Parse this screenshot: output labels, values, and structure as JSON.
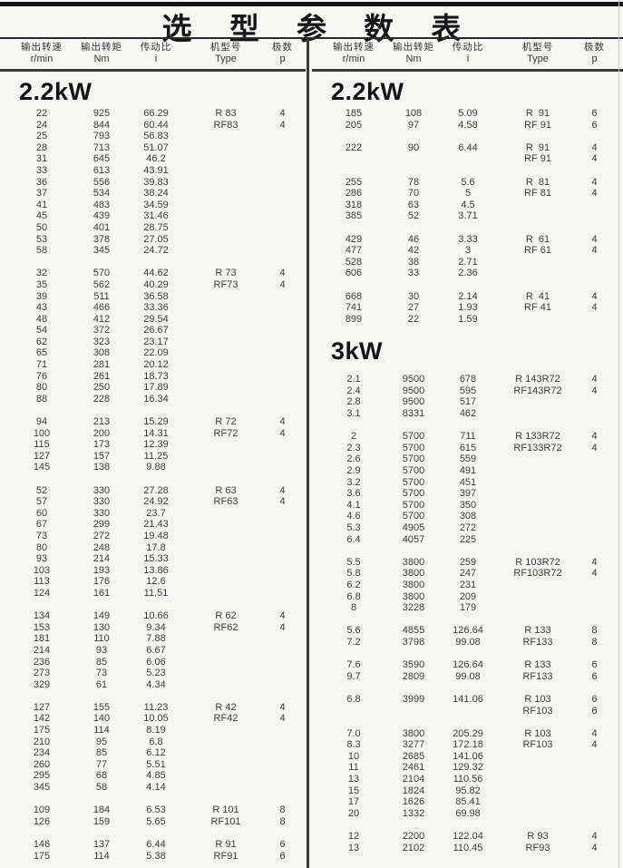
{
  "title": "选 型 参 数 表",
  "header": {
    "columns": [
      {
        "cn": "输出转速",
        "unit": "r/min"
      },
      {
        "cn": "输出转矩",
        "unit": "Nm"
      },
      {
        "cn": "传动比",
        "unit": "i"
      },
      {
        "cn": "机型号",
        "unit": "Type"
      },
      {
        "cn": "极数",
        "unit": "p"
      }
    ]
  },
  "colors": {
    "rule": "#3a3a3a",
    "text": "#3b3b3b",
    "background": "#f6f6f4"
  },
  "table": {
    "left_column": {
      "sections": [
        {
          "label": "2.2kW",
          "blocks": [
            [
              [
                "22",
                "925",
                "66.29",
                "R 83",
                "4"
              ],
              [
                "24",
                "844",
                "60.44",
                "RF83",
                "4"
              ],
              [
                "25",
                "793",
                "56.83",
                "",
                ""
              ],
              [
                "28",
                "713",
                "51.07",
                "",
                ""
              ],
              [
                "31",
                "645",
                "46.2",
                "",
                ""
              ],
              [
                "33",
                "613",
                "43.91",
                "",
                ""
              ],
              [
                "36",
                "556",
                "39.83",
                "",
                ""
              ],
              [
                "37",
                "534",
                "38.24",
                "",
                ""
              ],
              [
                "41",
                "483",
                "34.59",
                "",
                ""
              ],
              [
                "45",
                "439",
                "31.46",
                "",
                ""
              ],
              [
                "50",
                "401",
                "28.75",
                "",
                ""
              ],
              [
                "53",
                "378",
                "27.05",
                "",
                ""
              ],
              [
                "58",
                "345",
                "24.72",
                "",
                ""
              ]
            ],
            [
              [
                "32",
                "570",
                "44.62",
                "R 73",
                "4"
              ],
              [
                "35",
                "562",
                "40.29",
                "RF73",
                "4"
              ],
              [
                "39",
                "511",
                "36.58",
                "",
                ""
              ],
              [
                "43",
                "466",
                "33.36",
                "",
                ""
              ],
              [
                "48",
                "412",
                "29.54",
                "",
                ""
              ],
              [
                "54",
                "372",
                "26.67",
                "",
                ""
              ],
              [
                "62",
                "323",
                "23.17",
                "",
                ""
              ],
              [
                "65",
                "308",
                "22.09",
                "",
                ""
              ],
              [
                "71",
                "281",
                "20.12",
                "",
                ""
              ],
              [
                "76",
                "261",
                "18.73",
                "",
                ""
              ],
              [
                "80",
                "250",
                "17.89",
                "",
                ""
              ],
              [
                "88",
                "228",
                "16.34",
                "",
                ""
              ]
            ],
            [
              [
                "94",
                "213",
                "15.29",
                "R 72",
                "4"
              ],
              [
                "100",
                "200",
                "14.31",
                "RF72",
                "4"
              ],
              [
                "115",
                "173",
                "12.39",
                "",
                ""
              ],
              [
                "127",
                "157",
                "11.25",
                "",
                ""
              ],
              [
                "145",
                "138",
                "9.88",
                "",
                ""
              ]
            ],
            [
              [
                "52",
                "330",
                "27.28",
                "R 63",
                "4"
              ],
              [
                "57",
                "330",
                "24.92",
                "RF63",
                "4"
              ],
              [
                "60",
                "330",
                "23.7",
                "",
                ""
              ],
              [
                "67",
                "299",
                "21.43",
                "",
                ""
              ],
              [
                "73",
                "272",
                "19.48",
                "",
                ""
              ],
              [
                "80",
                "248",
                "17.8",
                "",
                ""
              ],
              [
                "93",
                "214",
                "15.33",
                "",
                ""
              ],
              [
                "103",
                "193",
                "13.86",
                "",
                ""
              ],
              [
                "113",
                "176",
                "12.6",
                "",
                ""
              ],
              [
                "124",
                "161",
                "11.51",
                "",
                ""
              ]
            ],
            [
              [
                "134",
                "149",
                "10.66",
                "R 62",
                "4"
              ],
              [
                "153",
                "130",
                "9.34",
                "RF62",
                "4"
              ],
              [
                "181",
                "110",
                "7.88",
                "",
                ""
              ],
              [
                "214",
                "93",
                "6.67",
                "",
                ""
              ],
              [
                "236",
                "85",
                "6.06",
                "",
                ""
              ],
              [
                "273",
                "73",
                "5.23",
                "",
                ""
              ],
              [
                "329",
                "61",
                "4.34",
                "",
                ""
              ]
            ],
            [
              [
                "127",
                "155",
                "11.23",
                "R 42",
                "4"
              ],
              [
                "142",
                "140",
                "10.05",
                "RF42",
                "4"
              ],
              [
                "175",
                "114",
                "8.19",
                "",
                ""
              ],
              [
                "210",
                "95",
                "6.8",
                "",
                ""
              ],
              [
                "234",
                "85",
                "6.12",
                "",
                ""
              ],
              [
                "260",
                "77",
                "5.51",
                "",
                ""
              ],
              [
                "295",
                "68",
                "4.85",
                "",
                ""
              ],
              [
                "345",
                "58",
                "4.14",
                "",
                ""
              ]
            ],
            [
              [
                "109",
                "184",
                "6.53",
                "R 101",
                "8"
              ],
              [
                "126",
                "159",
                "5.65",
                "RF101",
                "8"
              ]
            ],
            [
              [
                "146",
                "137",
                "6.44",
                "R 91",
                "6"
              ],
              [
                "175",
                "114",
                "5.38",
                "RF91",
                "6"
              ]
            ]
          ]
        }
      ]
    },
    "right_column": {
      "sections": [
        {
          "label": "2.2kW",
          "blocks": [
            [
              [
                "185",
                "108",
                "5.09",
                "R  91",
                "6"
              ],
              [
                "205",
                "97",
                "4.58",
                "RF 91",
                "6"
              ]
            ],
            [
              [
                "222",
                "90",
                "6.44",
                "R  91",
                "4"
              ],
              [
                "",
                "",
                "",
                "RF 91",
                "4"
              ]
            ],
            [
              [
                "255",
                "78",
                "5.6",
                "R  81",
                "4"
              ],
              [
                "286",
                "70",
                "5",
                "RF 81",
                "4"
              ],
              [
                "318",
                "63",
                "4.5",
                "",
                ""
              ],
              [
                "385",
                "52",
                "3.71",
                "",
                ""
              ]
            ],
            [
              [
                "429",
                "46",
                "3.33",
                "R  61",
                "4"
              ],
              [
                "477",
                "42",
                "3",
                "RF 61",
                "4"
              ],
              [
                "528",
                "38",
                "2.71",
                "",
                ""
              ],
              [
                "606",
                "33",
                "2.36",
                "",
                ""
              ]
            ],
            [
              [
                "668",
                "30",
                "2.14",
                "R  41",
                "4"
              ],
              [
                "741",
                "27",
                "1.93",
                "RF 41",
                "4"
              ],
              [
                "899",
                "22",
                "1.59",
                "",
                ""
              ]
            ]
          ]
        },
        {
          "label": "3kW",
          "blocks": [
            [
              [
                "2.1",
                "9500",
                "678",
                "R 143R72",
                "4"
              ],
              [
                "2.4",
                "9500",
                "595",
                "RF143R72",
                "4"
              ],
              [
                "2.8",
                "9500",
                "517",
                "",
                ""
              ],
              [
                "3.1",
                "8331",
                "462",
                "",
                ""
              ]
            ],
            [
              [
                "2",
                "5700",
                "711",
                "R 133R72",
                "4"
              ],
              [
                "2.3",
                "5700",
                "615",
                "RF133R72",
                "4"
              ],
              [
                "2.6",
                "5700",
                "559",
                "",
                ""
              ],
              [
                "2.9",
                "5700",
                "491",
                "",
                ""
              ],
              [
                "3.2",
                "5700",
                "451",
                "",
                ""
              ],
              [
                "3.6",
                "5700",
                "397",
                "",
                ""
              ],
              [
                "4.1",
                "5700",
                "350",
                "",
                ""
              ],
              [
                "4.6",
                "5700",
                "308",
                "",
                ""
              ],
              [
                "5.3",
                "4905",
                "272",
                "",
                ""
              ],
              [
                "6.4",
                "4057",
                "225",
                "",
                ""
              ]
            ],
            [
              [
                "5.5",
                "3800",
                "259",
                "R 103R72",
                "4"
              ],
              [
                "5.8",
                "3800",
                "247",
                "RF103R72",
                "4"
              ],
              [
                "6.2",
                "3800",
                "231",
                "",
                ""
              ],
              [
                "6.8",
                "3800",
                "209",
                "",
                ""
              ],
              [
                "8",
                "3228",
                "179",
                "",
                ""
              ]
            ],
            [
              [
                "5.6",
                "4855",
                "126.64",
                "R 133",
                "8"
              ],
              [
                "7.2",
                "3798",
                "99.08",
                "RF133",
                "8"
              ]
            ],
            [
              [
                "7.6",
                "3590",
                "126.64",
                "R 133",
                "6"
              ],
              [
                "9.7",
                "2809",
                "99.08",
                "RF133",
                "6"
              ]
            ],
            [
              [
                "6.8",
                "3999",
                "141.06",
                "R 103",
                "6"
              ],
              [
                "",
                "",
                "",
                "RF103",
                "6"
              ]
            ],
            [
              [
                "7.0",
                "3800",
                "205.29",
                "R 103",
                "4"
              ],
              [
                "8.3",
                "3277",
                "172.18",
                "RF103",
                "4"
              ],
              [
                "10",
                "2685",
                "141.06",
                "",
                ""
              ],
              [
                "11",
                "2461",
                "129.32",
                "",
                ""
              ],
              [
                "13",
                "2104",
                "110.56",
                "",
                ""
              ],
              [
                "15",
                "1824",
                "95.82",
                "",
                ""
              ],
              [
                "17",
                "1626",
                "85.41",
                "",
                ""
              ],
              [
                "20",
                "1332",
                "69.98",
                "",
                ""
              ]
            ],
            [
              [
                "12",
                "2200",
                "122.04",
                "R 93",
                "4"
              ],
              [
                "13",
                "2102",
                "110.45",
                "RF93",
                "4"
              ]
            ]
          ]
        }
      ]
    }
  }
}
